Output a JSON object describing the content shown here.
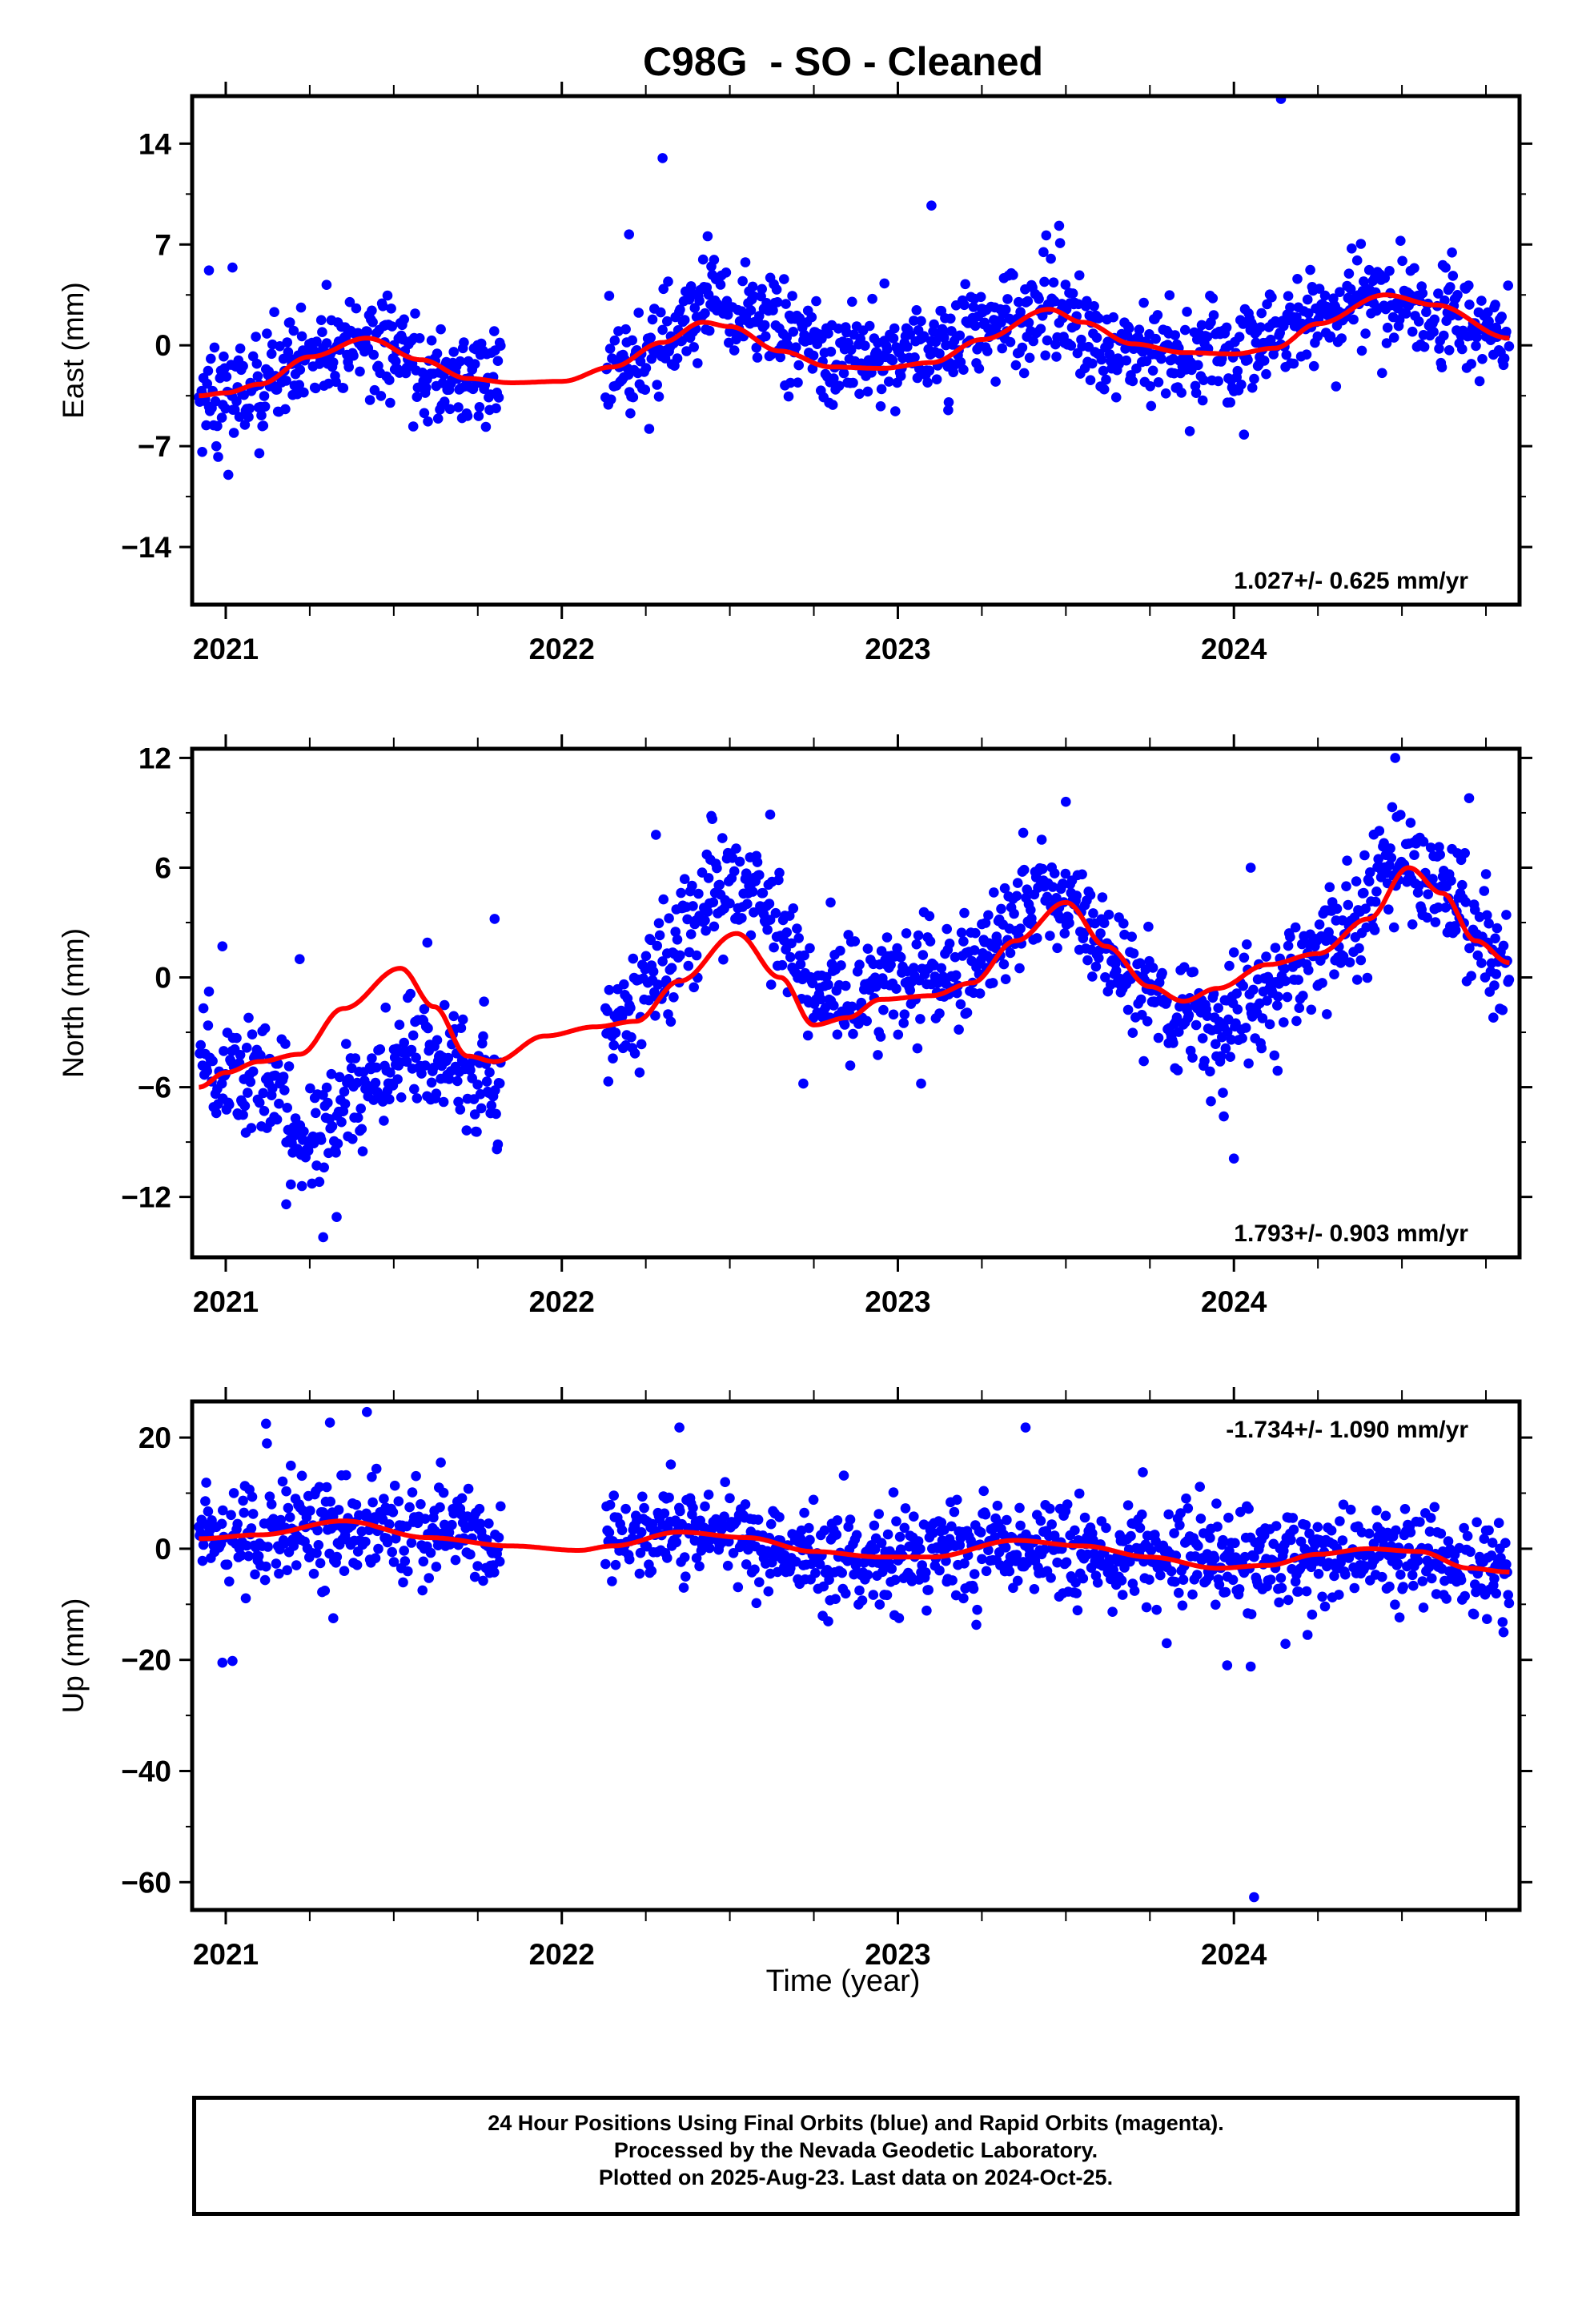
{
  "title": "C98G  - SO - Cleaned",
  "xlabel": "Time (year)",
  "caption": [
    "24 Hour Positions Using Final Orbits (blue) and Rapid Orbits (magenta).",
    "Processed by the Nevada Geodetic Laboratory.",
    "Plotted on 2025-Aug-23. Last data on 2024-Oct-25."
  ],
  "colors": {
    "observations": "#0000ff",
    "model": "#ff0000",
    "axes": "#000000"
  },
  "chart_data": [
    {
      "type": "scatter",
      "ylabel": "East (mm)",
      "rate_text": "1.027+/- 0.625 mm/yr",
      "rate_position": "bottom-right",
      "xlim": [
        2020.9,
        2024.85
      ],
      "ylim": [
        -18,
        17.3
      ],
      "yticks": [
        -14,
        -7,
        0,
        7,
        14
      ],
      "yticklabels": [
        "−14",
        "−7",
        "0",
        "7",
        "14"
      ],
      "xticks": [
        2021,
        2022,
        2023,
        2024
      ],
      "xticklabels": [
        "2021",
        "2022",
        "2023",
        "2024"
      ],
      "grid": false,
      "gap": [
        2021.82,
        2022.13
      ],
      "series": [
        {
          "kind": "daily-position-points",
          "coverage": [
            2020.92,
            2024.82
          ],
          "trend_knots": [
            [
              2020.92,
              -3.6
            ],
            [
              2021.1,
              -3.2
            ],
            [
              2021.25,
              -1.2
            ],
            [
              2021.42,
              0.4
            ],
            [
              2021.6,
              -1.8
            ],
            [
              2021.8,
              -2.6
            ],
            [
              2022.15,
              -1.6
            ],
            [
              2022.3,
              0.2
            ],
            [
              2022.45,
              3.2
            ],
            [
              2022.6,
              1.8
            ],
            [
              2022.75,
              -0.5
            ],
            [
              2022.95,
              -1.5
            ],
            [
              2023.15,
              0.5
            ],
            [
              2023.45,
              3.0
            ],
            [
              2023.6,
              0.0
            ],
            [
              2023.8,
              -0.6
            ],
            [
              2024.0,
              -0.8
            ],
            [
              2024.15,
              1.5
            ],
            [
              2024.45,
              3.5
            ],
            [
              2024.82,
              0.6
            ]
          ],
          "scatter_sd": 1.7,
          "outliers": [
            [
              2020.95,
              5.2
            ],
            [
              2021.02,
              5.4
            ],
            [
              2021.3,
              4.2
            ],
            [
              2022.3,
              13.0
            ],
            [
              2022.2,
              7.7
            ],
            [
              2022.96,
              4.3
            ],
            [
              2023.1,
              9.7
            ],
            [
              2023.48,
              8.3
            ],
            [
              2024.14,
              17.1
            ],
            [
              2024.03,
              -6.2
            ],
            [
              2020.93,
              -7.4
            ],
            [
              2021.1,
              -7.5
            ],
            [
              2022.26,
              -5.8
            ],
            [
              2023.15,
              -4.5
            ]
          ]
        },
        {
          "kind": "model-curve",
          "knots": [
            [
              2020.92,
              -3.5
            ],
            [
              2021.0,
              -3.3
            ],
            [
              2021.1,
              -2.7
            ],
            [
              2021.25,
              -0.8
            ],
            [
              2021.42,
              0.5
            ],
            [
              2021.58,
              -1.0
            ],
            [
              2021.72,
              -2.3
            ],
            [
              2021.85,
              -2.6
            ],
            [
              2022.0,
              -2.5
            ],
            [
              2022.15,
              -1.5
            ],
            [
              2022.3,
              0.2
            ],
            [
              2022.42,
              1.6
            ],
            [
              2022.5,
              1.3
            ],
            [
              2022.65,
              -0.4
            ],
            [
              2022.8,
              -1.5
            ],
            [
              2022.95,
              -1.6
            ],
            [
              2023.1,
              -1.2
            ],
            [
              2023.25,
              0.4
            ],
            [
              2023.45,
              2.5
            ],
            [
              2023.55,
              1.6
            ],
            [
              2023.7,
              0.1
            ],
            [
              2023.85,
              -0.5
            ],
            [
              2024.0,
              -0.6
            ],
            [
              2024.12,
              -0.2
            ],
            [
              2024.25,
              1.5
            ],
            [
              2024.45,
              3.5
            ],
            [
              2024.6,
              2.8
            ],
            [
              2024.82,
              0.5
            ]
          ]
        }
      ]
    },
    {
      "type": "scatter",
      "ylabel": "North (mm)",
      "rate_text": "1.793+/- 0.903 mm/yr",
      "rate_position": "bottom-right",
      "xlim": [
        2020.9,
        2024.85
      ],
      "ylim": [
        -15.3,
        12.5
      ],
      "yticks": [
        -12,
        -6,
        0,
        6,
        12
      ],
      "yticklabels": [
        "−12",
        "−6",
        "0",
        "6",
        "12"
      ],
      "xticks": [
        2021,
        2022,
        2023,
        2024
      ],
      "xticklabels": [
        "2021",
        "2022",
        "2023",
        "2024"
      ],
      "grid": false,
      "gap": [
        2021.82,
        2022.13
      ],
      "series": [
        {
          "kind": "daily-position-points",
          "coverage": [
            2020.92,
            2024.82
          ],
          "trend_knots": [
            [
              2020.92,
              -5.0
            ],
            [
              2021.1,
              -5.5
            ],
            [
              2021.25,
              -8.5
            ],
            [
              2021.4,
              -6.0
            ],
            [
              2021.6,
              -4.0
            ],
            [
              2021.8,
              -6.0
            ],
            [
              2022.15,
              -3.0
            ],
            [
              2022.3,
              0.5
            ],
            [
              2022.45,
              5.0
            ],
            [
              2022.6,
              4.5
            ],
            [
              2022.75,
              -1.0
            ],
            [
              2022.95,
              -0.5
            ],
            [
              2023.2,
              0.5
            ],
            [
              2023.45,
              5.0
            ],
            [
              2023.6,
              2.0
            ],
            [
              2023.8,
              -2.0
            ],
            [
              2023.95,
              -3.0
            ],
            [
              2024.1,
              -1.0
            ],
            [
              2024.3,
              2.0
            ],
            [
              2024.5,
              6.5
            ],
            [
              2024.65,
              4.0
            ],
            [
              2024.82,
              0.5
            ]
          ],
          "scatter_sd": 1.5,
          "outliers": [
            [
              2020.99,
              1.7
            ],
            [
              2021.22,
              1.0
            ],
            [
              2021.6,
              1.9
            ],
            [
              2021.8,
              3.2
            ],
            [
              2021.18,
              -12.4
            ],
            [
              2021.29,
              -14.2
            ],
            [
              2021.33,
              -13.1
            ],
            [
              2022.28,
              7.8
            ],
            [
              2022.62,
              8.9
            ],
            [
              2023.5,
              9.6
            ],
            [
              2023.97,
              -7.6
            ],
            [
              2024.0,
              -9.9
            ],
            [
              2024.05,
              6.0
            ],
            [
              2024.48,
              12.0
            ],
            [
              2024.7,
              9.8
            ],
            [
              2022.8,
              4.1
            ],
            [
              2024.13,
              -5.1
            ]
          ]
        },
        {
          "kind": "model-curve",
          "knots": [
            [
              2020.92,
              -6.0
            ],
            [
              2021.0,
              -5.2
            ],
            [
              2021.1,
              -4.6
            ],
            [
              2021.22,
              -4.2
            ],
            [
              2021.35,
              -1.7
            ],
            [
              2021.52,
              0.5
            ],
            [
              2021.62,
              -1.6
            ],
            [
              2021.72,
              -4.3
            ],
            [
              2021.8,
              -4.6
            ],
            [
              2021.95,
              -3.2
            ],
            [
              2022.1,
              -2.7
            ],
            [
              2022.22,
              -2.4
            ],
            [
              2022.35,
              -0.2
            ],
            [
              2022.52,
              2.4
            ],
            [
              2022.65,
              0.0
            ],
            [
              2022.75,
              -2.6
            ],
            [
              2022.85,
              -2.2
            ],
            [
              2022.95,
              -1.2
            ],
            [
              2023.1,
              -1.0
            ],
            [
              2023.22,
              -0.3
            ],
            [
              2023.35,
              2.0
            ],
            [
              2023.5,
              4.1
            ],
            [
              2023.62,
              1.7
            ],
            [
              2023.75,
              -0.5
            ],
            [
              2023.85,
              -1.3
            ],
            [
              2023.95,
              -0.6
            ],
            [
              2024.1,
              0.7
            ],
            [
              2024.25,
              1.3
            ],
            [
              2024.4,
              3.2
            ],
            [
              2024.52,
              6.0
            ],
            [
              2024.62,
              4.6
            ],
            [
              2024.72,
              2.0
            ],
            [
              2024.82,
              0.8
            ]
          ]
        }
      ]
    },
    {
      "type": "scatter",
      "ylabel": "Up (mm)",
      "rate_text": "-1.734+/- 1.090 mm/yr",
      "rate_position": "top-right",
      "xlim": [
        2020.9,
        2024.85
      ],
      "ylim": [
        -65,
        26.5
      ],
      "yticks": [
        -60,
        -40,
        -20,
        0,
        20
      ],
      "yticklabels": [
        "−60",
        "−40",
        "−20",
        "0",
        "20"
      ],
      "xticks": [
        2021,
        2022,
        2023,
        2024
      ],
      "xticklabels": [
        "2021",
        "2022",
        "2023",
        "2024"
      ],
      "grid": false,
      "gap": [
        2021.82,
        2022.13
      ],
      "series": [
        {
          "kind": "daily-position-points",
          "coverage": [
            2020.92,
            2024.82
          ],
          "trend_knots": [
            [
              2020.92,
              2
            ],
            [
              2021.35,
              5
            ],
            [
              2021.8,
              1
            ],
            [
              2022.3,
              3
            ],
            [
              2022.95,
              -2
            ],
            [
              2023.35,
              1
            ],
            [
              2023.9,
              -3
            ],
            [
              2024.4,
              0
            ],
            [
              2024.82,
              -4
            ]
          ],
          "scatter_sd": 4.5,
          "outliers": [
            [
              2021.12,
              22.5
            ],
            [
              2021.31,
              22.7
            ],
            [
              2021.42,
              24.6
            ],
            [
              2022.35,
              21.8
            ],
            [
              2023.38,
              21.8
            ],
            [
              2021.02,
              -20.2
            ],
            [
              2020.99,
              -20.5
            ],
            [
              2024.06,
              -62.7
            ],
            [
              2023.98,
              -21.0
            ],
            [
              2024.05,
              -21.2
            ],
            [
              2023.8,
              -17.0
            ],
            [
              2021.32,
              -12.5
            ]
          ]
        },
        {
          "kind": "model-curve",
          "knots": [
            [
              2020.92,
              1.8
            ],
            [
              2021.1,
              2.5
            ],
            [
              2021.35,
              5.0
            ],
            [
              2021.6,
              2.0
            ],
            [
              2021.85,
              0.5
            ],
            [
              2022.05,
              -0.3
            ],
            [
              2022.15,
              0.5
            ],
            [
              2022.35,
              3.0
            ],
            [
              2022.55,
              2.0
            ],
            [
              2022.75,
              -0.5
            ],
            [
              2022.95,
              -1.5
            ],
            [
              2023.1,
              -1.5
            ],
            [
              2023.35,
              1.5
            ],
            [
              2023.55,
              0.5
            ],
            [
              2023.75,
              -1.5
            ],
            [
              2023.95,
              -3.5
            ],
            [
              2024.1,
              -3.0
            ],
            [
              2024.25,
              -1.0
            ],
            [
              2024.4,
              0.0
            ],
            [
              2024.55,
              -0.5
            ],
            [
              2024.7,
              -3.5
            ],
            [
              2024.82,
              -4.2
            ]
          ]
        }
      ]
    }
  ]
}
